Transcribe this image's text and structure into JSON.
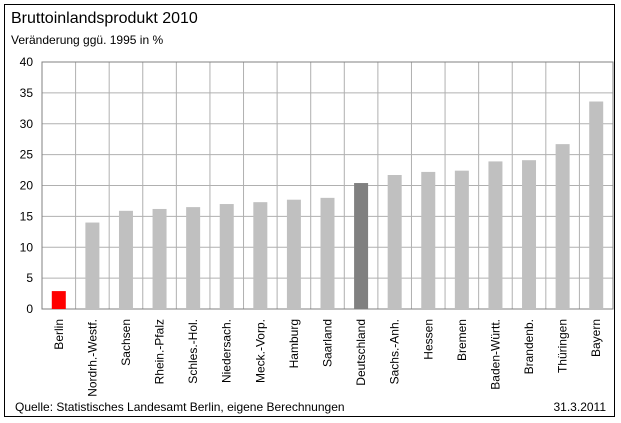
{
  "chart_data": {
    "type": "bar",
    "title": "Bruttoinlandsprodukt 2010",
    "subtitle": "Veränderung ggü. 1995 in %",
    "categories": [
      "Berlin",
      "Nordrh.-Westf.",
      "Sachsen",
      "Rhein.-Pfalz",
      "Schles.-Hol.",
      "Niedersach.",
      "Meck.-Vorp.",
      "Hamburg",
      "Saarland",
      "Deutschland",
      "Sachs.-Anh.",
      "Hessen",
      "Bremen",
      "Baden-Württ.",
      "Brandenb.",
      "Thüringen",
      "Bayern"
    ],
    "values": [
      2.9,
      14.0,
      15.9,
      16.2,
      16.5,
      17.0,
      17.3,
      17.7,
      18.0,
      20.4,
      21.7,
      22.2,
      22.4,
      23.9,
      24.1,
      26.7,
      33.6
    ],
    "ylim": [
      0,
      40
    ],
    "yticks": [
      0,
      5,
      10,
      15,
      20,
      25,
      30,
      35,
      40
    ],
    "grid": true,
    "colors": {
      "default": "#c0c0c0",
      "Berlin": "#ff0000",
      "Deutschland": "#808080"
    }
  },
  "source": "Quelle: Statistisches Landesamt Berlin, eigene Berechnungen",
  "date": "31.3.2011"
}
